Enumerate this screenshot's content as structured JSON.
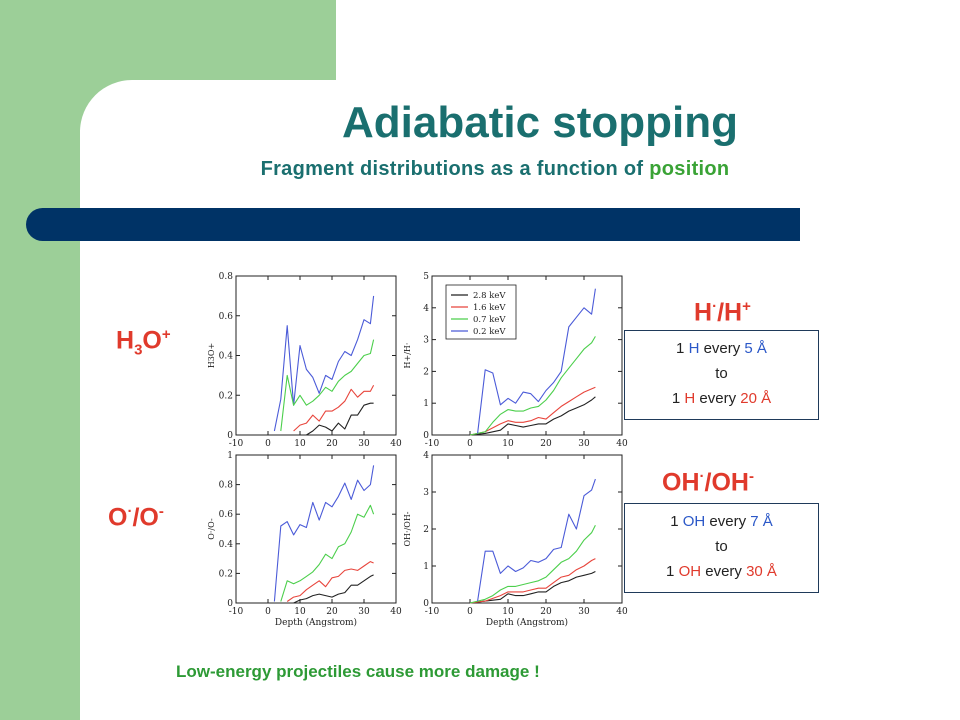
{
  "title": "Adiabatic stopping",
  "subtitle": {
    "prefix": "Fragment distributions as a function of ",
    "highlight": "position"
  },
  "labels": {
    "h3o": {
      "base": "H",
      "sub": "3",
      "mid": "O",
      "sup": "+"
    },
    "o": {
      "base": "O",
      "sup1": "·",
      "mid": "/O",
      "sup2": "-"
    },
    "h_ratio": {
      "base": "H",
      "sup1": "·",
      "mid": "/H",
      "sup2": "+"
    },
    "oh_ratio": {
      "base": "OH",
      "sup1": "·",
      "mid": "/OH",
      "sup2": "-"
    }
  },
  "box_h": {
    "l1a": "1 ",
    "l1b": "H",
    "l1c": " every ",
    "l1d": "5 Å",
    "l2": "to",
    "l3a": "1 ",
    "l3b": "H",
    "l3c": " every ",
    "l3d": "20 Å"
  },
  "box_oh": {
    "l1a": "1 ",
    "l1b": "OH",
    "l1c": " every ",
    "l1d": "7 Å",
    "l2": "to",
    "l3a": "1 ",
    "l3b": "OH",
    "l3c": " every ",
    "l3d": "30 Å"
  },
  "footer": "Low-energy projectiles cause more damage !",
  "colors": {
    "2.8 keV": "#222222",
    "1.6 keV": "#e8453c",
    "0.7 keV": "#4ccf4c",
    "0.2 keV": "#4b5bd8",
    "text_teal": "#1a6f6f",
    "accent_red": "#e03a2c",
    "band": "#003366",
    "green_side": "#9ccf98"
  },
  "chart_data": [
    {
      "type": "line",
      "xlabel": "",
      "ylabel": "H3O+",
      "xlim": [
        -10,
        40
      ],
      "ylim": [
        0,
        0.8
      ],
      "xticks": [
        -10,
        0,
        10,
        20,
        30,
        40
      ],
      "yticks": [
        0,
        0.2,
        0.4,
        0.6,
        0.8
      ],
      "series": [
        {
          "name": "0.2 keV",
          "x": [
            2,
            4,
            6,
            8,
            10,
            12,
            14,
            16,
            18,
            20,
            22,
            24,
            26,
            28,
            30,
            32,
            33
          ],
          "y": [
            0.02,
            0.18,
            0.55,
            0.15,
            0.45,
            0.33,
            0.29,
            0.21,
            0.3,
            0.28,
            0.37,
            0.42,
            0.4,
            0.48,
            0.58,
            0.56,
            0.7
          ]
        },
        {
          "name": "0.7 keV",
          "x": [
            4,
            6,
            8,
            10,
            12,
            14,
            16,
            18,
            20,
            22,
            24,
            26,
            28,
            30,
            32,
            33
          ],
          "y": [
            0.02,
            0.3,
            0.15,
            0.2,
            0.15,
            0.17,
            0.2,
            0.24,
            0.22,
            0.27,
            0.3,
            0.32,
            0.36,
            0.4,
            0.41,
            0.48
          ]
        },
        {
          "name": "1.6 keV",
          "x": [
            8,
            10,
            12,
            14,
            16,
            18,
            20,
            22,
            24,
            26,
            28,
            30,
            32,
            33
          ],
          "y": [
            0.02,
            0.05,
            0.06,
            0.1,
            0.07,
            0.12,
            0.12,
            0.14,
            0.17,
            0.23,
            0.19,
            0.22,
            0.22,
            0.25
          ]
        },
        {
          "name": "2.8 keV",
          "x": [
            12,
            14,
            16,
            18,
            20,
            22,
            24,
            26,
            28,
            30,
            32,
            33
          ],
          "y": [
            0.0,
            0.02,
            0.05,
            0.04,
            0.02,
            0.06,
            0.03,
            0.1,
            0.1,
            0.15,
            0.16,
            0.16
          ]
        }
      ]
    },
    {
      "type": "line",
      "xlabel": "",
      "ylabel": "H+/H·",
      "xlim": [
        -10,
        40
      ],
      "ylim": [
        0,
        5
      ],
      "xticks": [
        -10,
        0,
        10,
        20,
        30,
        40
      ],
      "yticks": [
        0,
        1,
        2,
        3,
        4,
        5
      ],
      "legend": {
        "position": "top-left",
        "entries": [
          "2.8 keV",
          "1.6 keV",
          "0.7 keV",
          "0.2 keV"
        ]
      },
      "series": [
        {
          "name": "2.8 keV",
          "x": [
            0,
            4,
            8,
            10,
            12,
            14,
            16,
            18,
            20,
            22,
            24,
            26,
            28,
            30,
            32,
            33
          ],
          "y": [
            0.0,
            0.05,
            0.15,
            0.35,
            0.3,
            0.25,
            0.3,
            0.35,
            0.35,
            0.5,
            0.6,
            0.75,
            0.85,
            0.95,
            1.1,
            1.2
          ]
        },
        {
          "name": "1.6 keV",
          "x": [
            0,
            4,
            8,
            10,
            12,
            14,
            16,
            18,
            20,
            22,
            24,
            26,
            28,
            30,
            32,
            33
          ],
          "y": [
            0.0,
            0.1,
            0.35,
            0.45,
            0.4,
            0.4,
            0.45,
            0.55,
            0.5,
            0.7,
            0.9,
            1.05,
            1.2,
            1.35,
            1.45,
            1.5
          ]
        },
        {
          "name": "0.7 keV",
          "x": [
            0,
            4,
            6,
            8,
            10,
            12,
            14,
            16,
            18,
            20,
            22,
            24,
            26,
            28,
            30,
            32,
            33
          ],
          "y": [
            0.0,
            0.1,
            0.4,
            0.65,
            0.8,
            0.75,
            0.75,
            0.85,
            0.9,
            1.1,
            1.4,
            1.8,
            2.1,
            2.4,
            2.7,
            2.9,
            3.1
          ]
        },
        {
          "name": "0.2 keV",
          "x": [
            2,
            4,
            6,
            8,
            10,
            12,
            14,
            16,
            18,
            20,
            22,
            24,
            26,
            28,
            30,
            32,
            33
          ],
          "y": [
            0.05,
            2.05,
            1.95,
            0.95,
            1.15,
            1.0,
            1.35,
            1.3,
            1.05,
            1.4,
            1.65,
            2.0,
            3.4,
            3.7,
            4.0,
            3.8,
            4.6
          ]
        }
      ]
    },
    {
      "type": "line",
      "xlabel": "Depth (Angstrom)",
      "ylabel": "O·/O-",
      "xlim": [
        -10,
        40
      ],
      "ylim": [
        0,
        1
      ],
      "xticks": [
        -10,
        0,
        10,
        20,
        30,
        40
      ],
      "yticks": [
        0,
        0.2,
        0.4,
        0.6,
        0.8,
        1
      ],
      "series": [
        {
          "name": "0.2 keV",
          "x": [
            2,
            4,
            6,
            8,
            10,
            12,
            14,
            16,
            18,
            20,
            22,
            24,
            26,
            28,
            30,
            32,
            33
          ],
          "y": [
            0.01,
            0.52,
            0.55,
            0.46,
            0.53,
            0.51,
            0.68,
            0.56,
            0.68,
            0.65,
            0.72,
            0.81,
            0.7,
            0.83,
            0.76,
            0.8,
            0.93
          ]
        },
        {
          "name": "0.7 keV",
          "x": [
            4,
            6,
            8,
            10,
            12,
            14,
            16,
            18,
            20,
            22,
            24,
            26,
            28,
            30,
            32,
            33
          ],
          "y": [
            0.01,
            0.15,
            0.13,
            0.15,
            0.18,
            0.21,
            0.26,
            0.33,
            0.3,
            0.38,
            0.4,
            0.48,
            0.6,
            0.58,
            0.66,
            0.6
          ]
        },
        {
          "name": "1.6 keV",
          "x": [
            6,
            8,
            10,
            12,
            14,
            16,
            18,
            20,
            22,
            24,
            26,
            28,
            30,
            32,
            33
          ],
          "y": [
            0.01,
            0.04,
            0.05,
            0.09,
            0.12,
            0.15,
            0.11,
            0.17,
            0.18,
            0.22,
            0.23,
            0.22,
            0.25,
            0.28,
            0.27
          ]
        },
        {
          "name": "2.8 keV",
          "x": [
            8,
            10,
            12,
            14,
            16,
            18,
            20,
            22,
            24,
            26,
            28,
            30,
            32,
            33
          ],
          "y": [
            0.0,
            0.02,
            0.03,
            0.05,
            0.06,
            0.05,
            0.04,
            0.06,
            0.07,
            0.12,
            0.12,
            0.15,
            0.18,
            0.19
          ]
        }
      ]
    },
    {
      "type": "line",
      "xlabel": "Depth (Angstrom)",
      "ylabel": "OH·/OH-",
      "xlim": [
        -10,
        40
      ],
      "ylim": [
        0,
        4
      ],
      "xticks": [
        -10,
        0,
        10,
        20,
        30,
        40
      ],
      "yticks": [
        0,
        1,
        2,
        3,
        4
      ],
      "series": [
        {
          "name": "2.8 keV",
          "x": [
            0,
            4,
            8,
            10,
            12,
            14,
            16,
            18,
            20,
            22,
            24,
            26,
            28,
            30,
            32,
            33
          ],
          "y": [
            0.0,
            0.05,
            0.1,
            0.25,
            0.2,
            0.2,
            0.25,
            0.3,
            0.3,
            0.45,
            0.55,
            0.6,
            0.7,
            0.75,
            0.8,
            0.85
          ]
        },
        {
          "name": "1.6 keV",
          "x": [
            0,
            4,
            8,
            10,
            12,
            14,
            16,
            18,
            20,
            22,
            24,
            26,
            28,
            30,
            32,
            33
          ],
          "y": [
            0.0,
            0.05,
            0.2,
            0.3,
            0.3,
            0.3,
            0.35,
            0.4,
            0.4,
            0.55,
            0.7,
            0.75,
            0.9,
            1.0,
            1.15,
            1.2
          ]
        },
        {
          "name": "0.7 keV",
          "x": [
            0,
            4,
            6,
            8,
            10,
            12,
            14,
            16,
            18,
            20,
            22,
            24,
            26,
            28,
            30,
            32,
            33
          ],
          "y": [
            0.0,
            0.1,
            0.2,
            0.35,
            0.45,
            0.45,
            0.5,
            0.55,
            0.6,
            0.7,
            0.9,
            1.1,
            1.2,
            1.4,
            1.7,
            1.9,
            2.1
          ]
        },
        {
          "name": "0.2 keV",
          "x": [
            2,
            4,
            6,
            8,
            10,
            12,
            14,
            16,
            18,
            20,
            22,
            24,
            26,
            28,
            30,
            32,
            33
          ],
          "y": [
            0.05,
            1.4,
            1.4,
            0.8,
            1.0,
            0.85,
            0.95,
            1.15,
            1.1,
            1.2,
            1.45,
            1.5,
            2.4,
            2.0,
            2.9,
            3.05,
            3.35
          ]
        }
      ]
    }
  ]
}
